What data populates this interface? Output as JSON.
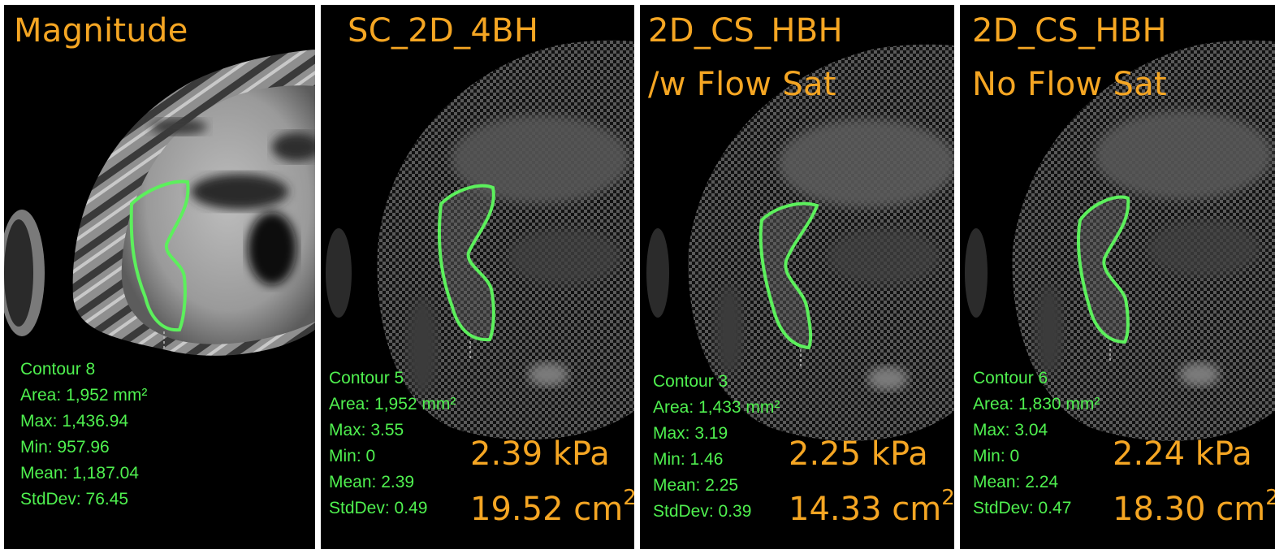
{
  "panels": [
    {
      "title": [
        "Magnitude"
      ],
      "stats": {
        "contour": "Contour 8",
        "area": "Area: 1,952 mm²",
        "max": "Max: 1,436.94",
        "min": "Min: 957.96",
        "mean": "Mean: 1,187.04",
        "stddev": "StdDev: 76.45"
      }
    },
    {
      "title": [
        "SC_2D_4BH"
      ],
      "stats": {
        "contour": "Contour 5",
        "area": "Area: 1,952 mm²",
        "max": "Max: 3.55",
        "min": "Min: 0",
        "mean": "Mean: 2.39",
        "stddev": "StdDev: 0.49"
      },
      "stiffness": "2.39 kPa",
      "roi_area": "19.52 cm",
      "roi_area_exp": "2"
    },
    {
      "title": [
        "2D_CS_HBH",
        "/w Flow Sat"
      ],
      "stats": {
        "contour": "Contour 3",
        "area": "Area: 1,433 mm²",
        "max": "Max: 3.19",
        "min": "Min: 1.46",
        "mean": "Mean: 2.25",
        "stddev": "StdDev: 0.39"
      },
      "stiffness": "2.25 kPa",
      "roi_area": "14.33 cm",
      "roi_area_exp": "2"
    },
    {
      "title": [
        "2D_CS_HBH",
        "No Flow Sat"
      ],
      "stats": {
        "contour": "Contour 6",
        "area": "Area: 1,830 mm²",
        "max": "Max: 3.04",
        "min": "Min: 0",
        "mean": "Mean: 2.24",
        "stddev": "StdDev: 0.47"
      },
      "stiffness": "2.24 kPa",
      "roi_area": "18.30 cm",
      "roi_area_exp": "2"
    }
  ],
  "colors": {
    "title": "#f5a623",
    "stats": "#4ff04f",
    "contour": "#5cf05c",
    "background": "#000000"
  }
}
